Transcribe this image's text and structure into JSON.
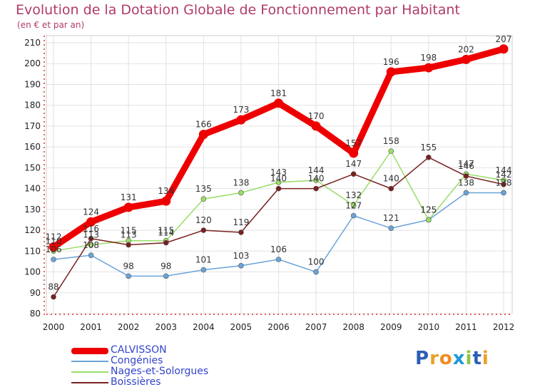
{
  "title": "Evolution de la Dotation Globale de Fonctionnement par Habitant",
  "subtitle": "(en € et par an)",
  "logo_text": "Proxiti",
  "chart_data": {
    "type": "line",
    "title": "Evolution de la Dotation Globale de Fonctionnement par Habitant",
    "ylabel": "(en € et par an)",
    "xlabel": "",
    "ylim": [
      80,
      210
    ],
    "yticks": [
      80,
      90,
      100,
      110,
      120,
      130,
      140,
      150,
      160,
      170,
      180,
      190,
      200,
      210
    ],
    "x": [
      "2000",
      "2001",
      "2002",
      "2003",
      "2004",
      "2005",
      "2006",
      "2007",
      "2008",
      "2009",
      "2010",
      "2011",
      "2012"
    ],
    "grid": true,
    "legend": "bottom-left",
    "series": [
      {
        "name": "CALVISSON",
        "color": "#ee0000",
        "values": [
          112,
          124,
          131,
          134,
          166,
          173,
          181,
          170,
          157,
          196,
          198,
          202,
          207
        ]
      },
      {
        "name": "Congénies",
        "color": "#6aa3d8",
        "values": [
          106,
          108,
          98,
          98,
          101,
          103,
          106,
          100,
          127,
          121,
          125,
          138,
          138
        ]
      },
      {
        "name": "Nages-et-Solorgues",
        "color": "#99dd66",
        "values": [
          110,
          113,
          115,
          115,
          135,
          138,
          143,
          144,
          132,
          158,
          125,
          147,
          144
        ]
      },
      {
        "name": "Boissières",
        "color": "#7a2020",
        "values": [
          88,
          116,
          113,
          114,
          120,
          119,
          140,
          140,
          147,
          140,
          155,
          146,
          142
        ]
      }
    ]
  }
}
